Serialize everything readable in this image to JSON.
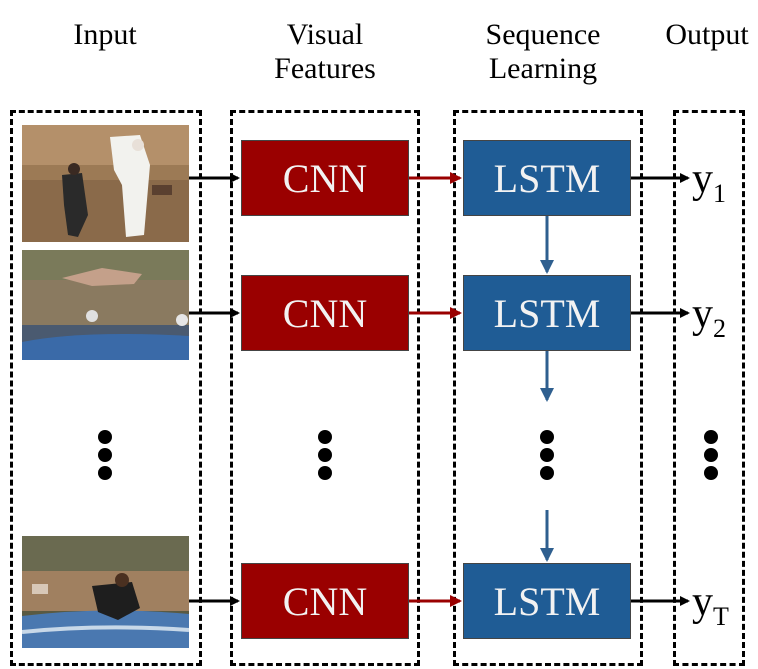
{
  "headers": {
    "input": "Input",
    "visual_features": [
      "Visual",
      "Features"
    ],
    "sequence_learning": [
      "Sequence",
      "Learning"
    ],
    "output": "Output"
  },
  "nodes": {
    "cnn_label": "CNN",
    "lstm_label": "LSTM"
  },
  "outputs": [
    {
      "base": "y",
      "sub": "1"
    },
    {
      "base": "y",
      "sub": "2"
    },
    {
      "base": "y",
      "sub": "T"
    }
  ],
  "colors": {
    "cnn": "#9a0000",
    "lstm": "#1f5c95",
    "red_arrow": "#9a0000",
    "blue_arrow": "#2f5f8f"
  },
  "icons": {
    "thumbnails": [
      "sports-frame-image",
      "sports-frame-image",
      "sports-frame-image"
    ],
    "ellipsis": "vertical-ellipsis-dots"
  }
}
